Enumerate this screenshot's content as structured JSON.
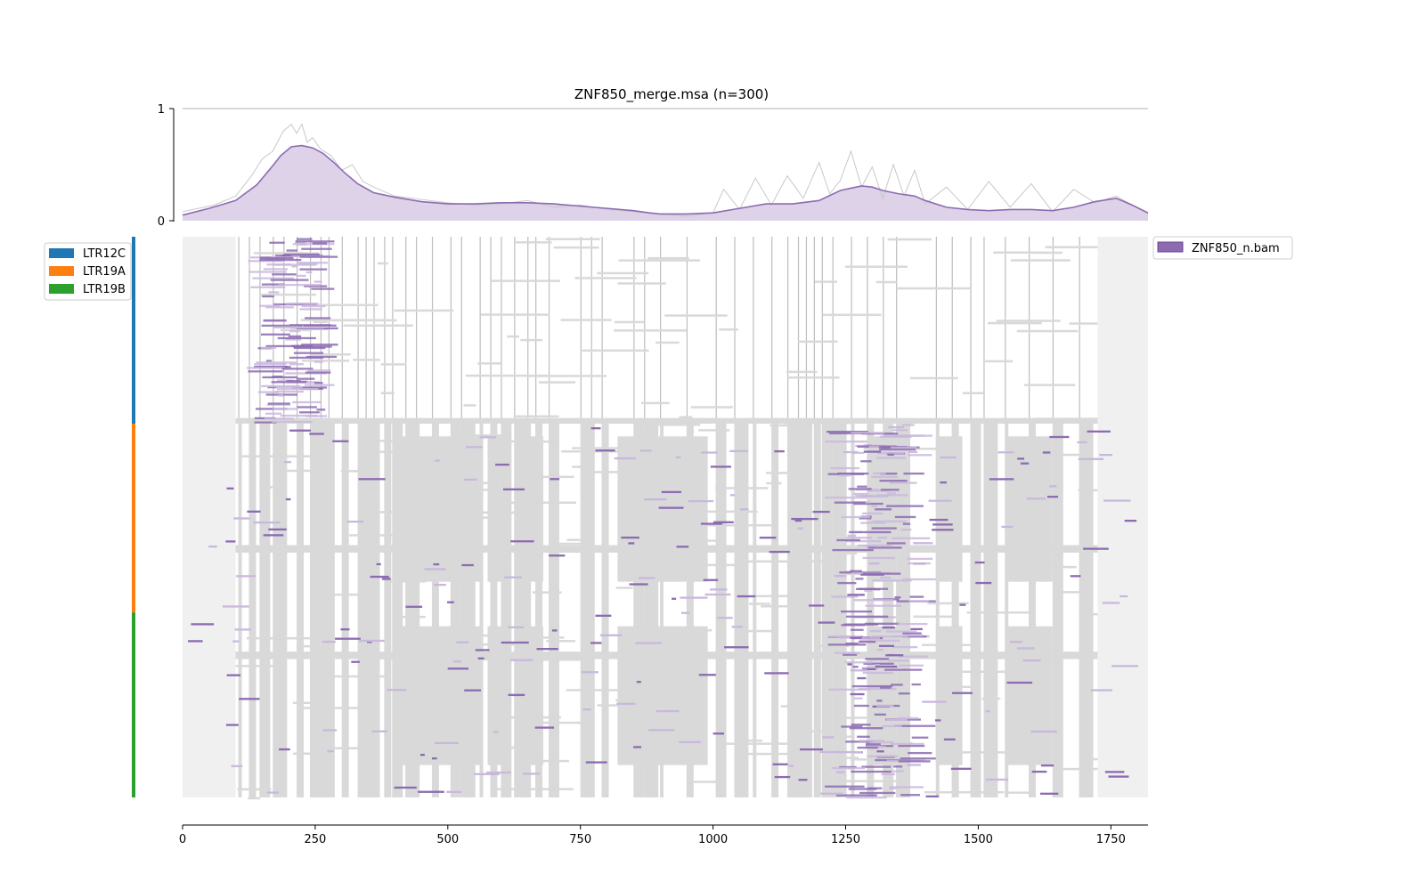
{
  "chart_data": [
    {
      "type": "area",
      "title": "ZNF850_merge.msa (n=300)",
      "xlabel": "",
      "ylabel": "",
      "xlim": [
        0,
        1820
      ],
      "ylim": [
        0,
        1
      ],
      "y_ticks": [
        0,
        1
      ],
      "y_tick_labels": [
        "0",
        "1"
      ],
      "series": [
        {
          "color": "#8c6bb1",
          "fill": "#ddd2e8",
          "x": [
            0,
            50,
            100,
            140,
            170,
            185,
            205,
            225,
            245,
            265,
            285,
            305,
            330,
            360,
            400,
            450,
            500,
            550,
            600,
            650,
            700,
            750,
            800,
            850,
            880,
            900,
            950,
            1000,
            1050,
            1100,
            1150,
            1200,
            1240,
            1260,
            1280,
            1300,
            1320,
            1350,
            1380,
            1400,
            1440,
            1480,
            1520,
            1560,
            1600,
            1640,
            1680,
            1720,
            1760,
            1790,
            1820
          ],
          "values": [
            0.05,
            0.11,
            0.18,
            0.32,
            0.49,
            0.58,
            0.66,
            0.67,
            0.65,
            0.6,
            0.52,
            0.43,
            0.33,
            0.25,
            0.21,
            0.17,
            0.15,
            0.15,
            0.16,
            0.16,
            0.15,
            0.13,
            0.11,
            0.09,
            0.07,
            0.06,
            0.06,
            0.07,
            0.11,
            0.15,
            0.15,
            0.18,
            0.27,
            0.29,
            0.31,
            0.3,
            0.27,
            0.24,
            0.22,
            0.18,
            0.12,
            0.1,
            0.09,
            0.1,
            0.1,
            0.09,
            0.12,
            0.17,
            0.2,
            0.14,
            0.07
          ]
        },
        {
          "color": "#c8c8c8",
          "x": [
            0,
            60,
            100,
            130,
            150,
            170,
            190,
            205,
            215,
            225,
            235,
            245,
            260,
            280,
            300,
            320,
            340,
            360,
            400,
            450,
            500,
            550,
            600,
            650,
            700,
            750,
            800,
            850,
            900,
            950,
            1000,
            1020,
            1050,
            1080,
            1110,
            1140,
            1170,
            1200,
            1220,
            1240,
            1260,
            1280,
            1300,
            1320,
            1340,
            1360,
            1380,
            1400,
            1440,
            1480,
            1520,
            1560,
            1600,
            1640,
            1680,
            1720,
            1760,
            1820
          ],
          "values": [
            0.08,
            0.14,
            0.22,
            0.4,
            0.55,
            0.62,
            0.8,
            0.86,
            0.78,
            0.86,
            0.7,
            0.74,
            0.64,
            0.58,
            0.45,
            0.5,
            0.35,
            0.3,
            0.22,
            0.19,
            0.16,
            0.14,
            0.15,
            0.18,
            0.12,
            0.14,
            0.1,
            0.08,
            0.06,
            0.04,
            0.07,
            0.28,
            0.1,
            0.38,
            0.14,
            0.4,
            0.2,
            0.52,
            0.24,
            0.36,
            0.62,
            0.3,
            0.48,
            0.2,
            0.5,
            0.22,
            0.45,
            0.15,
            0.3,
            0.1,
            0.35,
            0.12,
            0.33,
            0.08,
            0.28,
            0.16,
            0.22,
            0.06
          ]
        }
      ]
    },
    {
      "type": "heatmap",
      "xlabel": "",
      "ylabel": "",
      "xlim": [
        0,
        1820
      ],
      "x_ticks": [
        0,
        250,
        500,
        750,
        1000,
        1250,
        1500,
        1750
      ],
      "x_tick_labels": [
        "0",
        "250",
        "500",
        "750",
        "1000",
        "1250",
        "1500",
        "1750"
      ],
      "n_rows": 300,
      "row_groups": [
        {
          "name": "LTR12C",
          "color": "#1f77b4",
          "rows": 100
        },
        {
          "name": "LTR19A",
          "color": "#ff7f0e",
          "rows": 101
        },
        {
          "name": "LTR19B",
          "color": "#2ca02c",
          "rows": 99
        }
      ],
      "signal_legend": {
        "label": "ZNF850_n.bam",
        "color": "#8c6bb1"
      },
      "colors": {
        "gap": "#d9d9d9",
        "padding": "#f0f0f0",
        "signal": "#8c6bb1",
        "signal_light": "#c9b8dc"
      },
      "padding_region": {
        "LTR12C": [
          100,
          1725
        ],
        "LTR19A": [
          100,
          1725
        ],
        "LTR19B": [
          100,
          1725
        ]
      },
      "gap_columns_x": [
        105,
        125,
        145,
        170,
        190,
        215,
        240,
        260,
        275,
        300,
        330,
        345,
        360,
        380,
        395,
        420,
        440,
        470,
        505,
        525,
        560,
        580,
        600,
        625,
        650,
        665,
        690,
        750,
        770,
        790,
        850,
        870,
        900,
        950,
        1005,
        1040,
        1075,
        1110,
        1140,
        1160,
        1175,
        1190,
        1205,
        1225,
        1260,
        1290,
        1320,
        1345,
        1420,
        1450,
        1485,
        1510,
        1550,
        1595,
        1640,
        1690
      ],
      "gap_blocks": [
        {
          "group": "LTR19A",
          "x0": 100,
          "x1": 1725,
          "fraction": 0.55
        },
        {
          "group": "LTR19B",
          "x0": 100,
          "x1": 1725,
          "fraction": 0.5
        }
      ],
      "signal_bands": [
        {
          "group": "LTR12C",
          "x0": 115,
          "x1": 300,
          "center": 210,
          "strength": 0.9
        },
        {
          "group": "LTR19A",
          "x0": 1180,
          "x1": 1420,
          "center": 1320,
          "strength": 0.75
        },
        {
          "group": "LTR19B",
          "x0": 1180,
          "x1": 1420,
          "center": 1320,
          "strength": 0.7
        }
      ]
    }
  ]
}
